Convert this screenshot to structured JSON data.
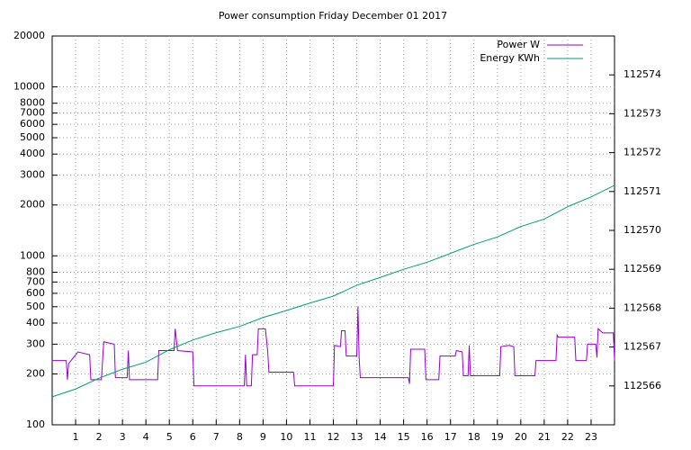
{
  "chart_data": {
    "type": "line",
    "title": "Power consumption Friday December 01 2017",
    "xlim": [
      0,
      24
    ],
    "xticks": [
      1,
      2,
      3,
      4,
      5,
      6,
      7,
      8,
      9,
      10,
      11,
      12,
      13,
      14,
      15,
      16,
      17,
      18,
      19,
      20,
      21,
      22,
      23
    ],
    "ylim": [
      100,
      20000
    ],
    "yticks": [
      100,
      200,
      300,
      400,
      500,
      600,
      700,
      800,
      1000,
      2000,
      3000,
      4000,
      5000,
      6000,
      7000,
      8000,
      10000,
      20000
    ],
    "y_log": true,
    "y2lim": [
      112565,
      112575
    ],
    "y2ticks": [
      112566,
      112567,
      112568,
      112569,
      112570,
      112571,
      112572,
      112573,
      112574
    ],
    "grid": true,
    "legend": "top-right",
    "series": [
      {
        "name": "Power W",
        "color": "#9400d3",
        "x": [
          0,
          0.6,
          0.65,
          0.7,
          1.1,
          1.6,
          1.65,
          2.1,
          2.2,
          2.65,
          2.7,
          3.2,
          3.25,
          3.3,
          4.5,
          4.55,
          5.2,
          5.25,
          5.35,
          6.0,
          6.05,
          8.2,
          8.25,
          8.3,
          8.5,
          8.55,
          8.75,
          8.8,
          9.1,
          9.2,
          9.25,
          10.3,
          10.35,
          12.0,
          12.05,
          12.3,
          12.35,
          12.5,
          12.55,
          13.0,
          13.05,
          13.1,
          13.15,
          15.2,
          15.25,
          15.3,
          15.9,
          15.95,
          16.5,
          16.55,
          17.2,
          17.25,
          17.5,
          17.55,
          17.75,
          17.8,
          17.85,
          19.1,
          19.15,
          19.5,
          19.7,
          19.75,
          20.6,
          20.65,
          21.5,
          21.55,
          21.6,
          22.3,
          22.35,
          22.8,
          22.85,
          23.2,
          23.25,
          23.3,
          23.5,
          23.95,
          24
        ],
        "values": [
          240,
          240,
          185,
          230,
          270,
          260,
          185,
          185,
          310,
          300,
          190,
          190,
          275,
          185,
          185,
          275,
          275,
          370,
          275,
          270,
          170,
          170,
          260,
          170,
          170,
          260,
          260,
          370,
          370,
          270,
          205,
          205,
          170,
          170,
          295,
          290,
          360,
          360,
          255,
          255,
          500,
          250,
          190,
          190,
          175,
          280,
          280,
          185,
          185,
          255,
          255,
          275,
          270,
          195,
          195,
          295,
          195,
          195,
          290,
          295,
          290,
          195,
          195,
          240,
          240,
          340,
          330,
          330,
          240,
          240,
          300,
          300,
          250,
          370,
          350,
          350,
          240
        ]
      },
      {
        "name": "Energy KWh",
        "color": "#009e73",
        "axis": "y2",
        "x": [
          0,
          1,
          2,
          3,
          4,
          5,
          6,
          7,
          8,
          9,
          10,
          11,
          12,
          13,
          14,
          15,
          16,
          17,
          18,
          19,
          20,
          21,
          22,
          23,
          24
        ],
        "values": [
          112565.72,
          112565.92,
          112566.2,
          112566.43,
          112566.61,
          112566.93,
          112567.18,
          112567.37,
          112567.53,
          112567.76,
          112567.94,
          112568.13,
          112568.31,
          112568.59,
          112568.79,
          112569.0,
          112569.18,
          112569.41,
          112569.64,
          112569.83,
          112570.1,
          112570.29,
          112570.61,
          112570.86,
          112571.16
        ]
      }
    ]
  }
}
